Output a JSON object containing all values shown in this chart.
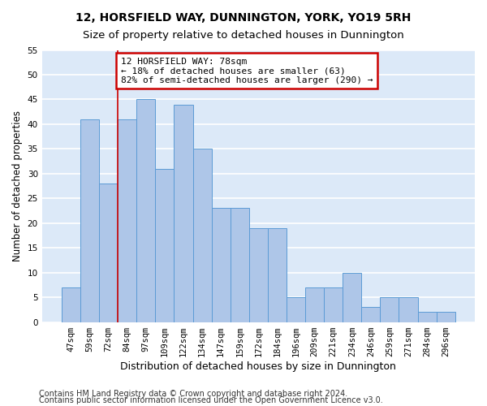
{
  "title": "12, HORSFIELD WAY, DUNNINGTON, YORK, YO19 5RH",
  "subtitle": "Size of property relative to detached houses in Dunnington",
  "xlabel": "Distribution of detached houses by size in Dunnington",
  "ylabel": "Number of detached properties",
  "categories": [
    "47sqm",
    "59sqm",
    "72sqm",
    "84sqm",
    "97sqm",
    "109sqm",
    "122sqm",
    "134sqm",
    "147sqm",
    "159sqm",
    "172sqm",
    "184sqm",
    "196sqm",
    "209sqm",
    "221sqm",
    "234sqm",
    "246sqm",
    "259sqm",
    "271sqm",
    "284sqm",
    "296sqm"
  ],
  "values": [
    7,
    41,
    28,
    41,
    45,
    31,
    44,
    35,
    23,
    23,
    19,
    19,
    5,
    7,
    7,
    10,
    3,
    5,
    5,
    2,
    2
  ],
  "bar_color": "#aec6e8",
  "bar_edge_color": "#5b9bd5",
  "property_line_x": 2.5,
  "annotation_text": "12 HORSFIELD WAY: 78sqm\n← 18% of detached houses are smaller (63)\n82% of semi-detached houses are larger (290) →",
  "annotation_box_color": "#ffffff",
  "annotation_box_edge": "#cc0000",
  "vline_color": "#cc0000",
  "ylim": [
    0,
    55
  ],
  "yticks": [
    0,
    5,
    10,
    15,
    20,
    25,
    30,
    35,
    40,
    45,
    50,
    55
  ],
  "background_color": "#dce9f8",
  "grid_color": "#ffffff",
  "footer_line1": "Contains HM Land Registry data © Crown copyright and database right 2024.",
  "footer_line2": "Contains public sector information licensed under the Open Government Licence v3.0.",
  "title_fontsize": 10,
  "subtitle_fontsize": 9.5,
  "xlabel_fontsize": 9,
  "ylabel_fontsize": 8.5,
  "tick_fontsize": 7.5,
  "annotation_fontsize": 8,
  "footer_fontsize": 7
}
